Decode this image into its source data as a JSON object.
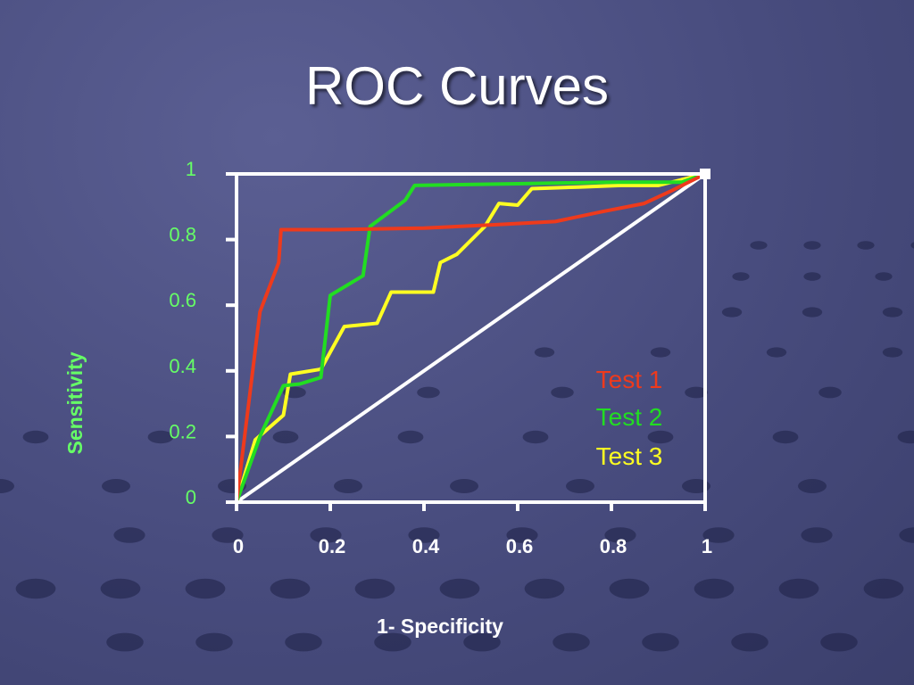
{
  "slide": {
    "title": "ROC Curves"
  },
  "colors": {
    "axis": "#ffffff",
    "label_green": "#66ff66",
    "x_tick_label": "#ffffff",
    "test1": "#ee3a1c",
    "test2": "#22dd22",
    "test3": "#ffff22",
    "reference": "#ffffff"
  },
  "chart_data": {
    "type": "line",
    "title": "ROC Curves",
    "xlabel": "1- Specificity",
    "ylabel": "Sensitivity",
    "xlim": [
      0,
      1
    ],
    "ylim": [
      0,
      1
    ],
    "x_ticks": [
      "0",
      "0.2",
      "0.4",
      "0.6",
      "0.8",
      "1"
    ],
    "y_ticks": [
      "0",
      "0.2",
      "0.4",
      "0.6",
      "0.8",
      "1"
    ],
    "grid": false,
    "legend_position": "bottom-right",
    "series": [
      {
        "name": "Test 1",
        "color": "#ee3a1c",
        "x": [
          0,
          0.05,
          0.09,
          0.095,
          0.2,
          0.4,
          0.55,
          0.68,
          0.78,
          0.87,
          0.93,
          1
        ],
        "y": [
          0,
          0.58,
          0.73,
          0.83,
          0.83,
          0.835,
          0.845,
          0.855,
          0.885,
          0.91,
          0.95,
          1
        ]
      },
      {
        "name": "Test 2",
        "color": "#22dd22",
        "x": [
          0,
          0.05,
          0.1,
          0.135,
          0.18,
          0.2,
          0.27,
          0.285,
          0.36,
          0.38,
          0.6,
          0.8,
          0.95,
          1
        ],
        "y": [
          0,
          0.2,
          0.355,
          0.36,
          0.38,
          0.63,
          0.69,
          0.84,
          0.92,
          0.965,
          0.97,
          0.975,
          0.975,
          1
        ]
      },
      {
        "name": "Test 3",
        "color": "#ffff22",
        "x": [
          0,
          0.04,
          0.1,
          0.115,
          0.18,
          0.23,
          0.3,
          0.33,
          0.42,
          0.435,
          0.47,
          0.53,
          0.56,
          0.6,
          0.63,
          0.73,
          0.82,
          0.9,
          1
        ],
        "y": [
          0,
          0.19,
          0.265,
          0.39,
          0.405,
          0.535,
          0.545,
          0.64,
          0.64,
          0.73,
          0.755,
          0.84,
          0.91,
          0.905,
          0.955,
          0.96,
          0.965,
          0.965,
          1
        ]
      }
    ],
    "reference_line": {
      "x": [
        0,
        1
      ],
      "y": [
        0,
        1
      ]
    }
  }
}
